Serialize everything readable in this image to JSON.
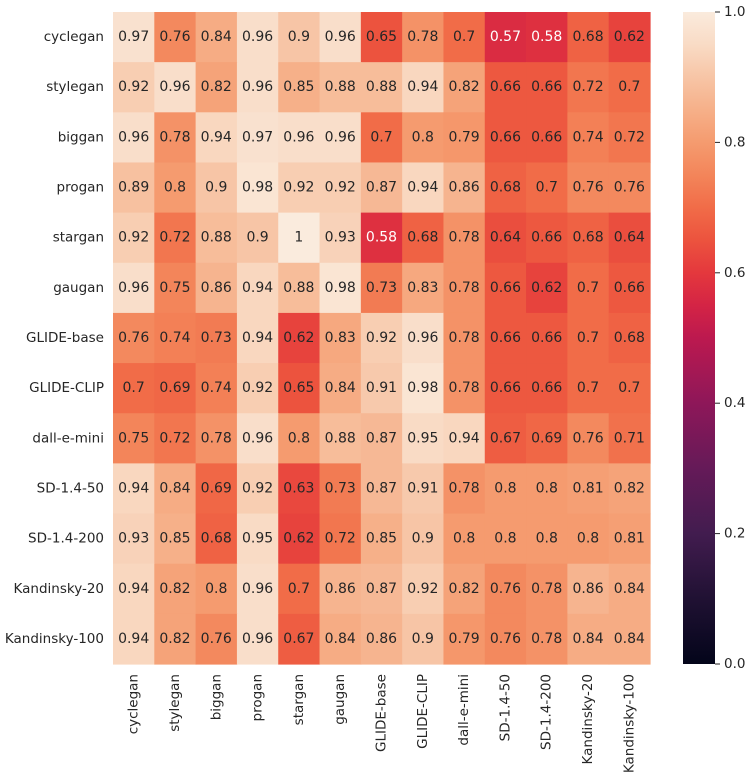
{
  "chart_data": {
    "type": "heatmap",
    "title": "",
    "xlabel": "",
    "ylabel": "",
    "rows": [
      "cyclegan",
      "stylegan",
      "biggan",
      "progan",
      "stargan",
      "gaugan",
      "GLIDE-base",
      "GLIDE-CLIP",
      "dall-e-mini",
      "SD-1.4-50",
      "SD-1.4-200",
      "Kandinsky-20",
      "Kandinsky-100"
    ],
    "columns": [
      "cyclegan",
      "stylegan",
      "biggan",
      "progan",
      "stargan",
      "gaugan",
      "GLIDE-base",
      "GLIDE-CLIP",
      "dall-e-mini",
      "SD-1.4-50",
      "SD-1.4-200",
      "Kandinsky-20",
      "Kandinsky-100"
    ],
    "values": [
      [
        0.97,
        0.76,
        0.84,
        0.96,
        0.9,
        0.96,
        0.65,
        0.78,
        0.7,
        0.57,
        0.58,
        0.68,
        0.62
      ],
      [
        0.92,
        0.96,
        0.82,
        0.96,
        0.85,
        0.88,
        0.88,
        0.94,
        0.82,
        0.66,
        0.66,
        0.72,
        0.7
      ],
      [
        0.96,
        0.78,
        0.94,
        0.97,
        0.96,
        0.96,
        0.7,
        0.8,
        0.79,
        0.66,
        0.66,
        0.74,
        0.72
      ],
      [
        0.89,
        0.8,
        0.9,
        0.98,
        0.92,
        0.92,
        0.87,
        0.94,
        0.86,
        0.68,
        0.7,
        0.76,
        0.76
      ],
      [
        0.92,
        0.72,
        0.88,
        0.9,
        1,
        0.93,
        0.58,
        0.68,
        0.78,
        0.64,
        0.66,
        0.68,
        0.64
      ],
      [
        0.96,
        0.75,
        0.86,
        0.94,
        0.88,
        0.98,
        0.73,
        0.83,
        0.78,
        0.66,
        0.62,
        0.7,
        0.66
      ],
      [
        0.76,
        0.74,
        0.73,
        0.94,
        0.62,
        0.83,
        0.92,
        0.96,
        0.78,
        0.66,
        0.66,
        0.7,
        0.68
      ],
      [
        0.7,
        0.69,
        0.74,
        0.92,
        0.65,
        0.84,
        0.91,
        0.98,
        0.78,
        0.66,
        0.66,
        0.7,
        0.7
      ],
      [
        0.75,
        0.72,
        0.78,
        0.96,
        0.8,
        0.88,
        0.87,
        0.95,
        0.94,
        0.67,
        0.69,
        0.76,
        0.71
      ],
      [
        0.94,
        0.84,
        0.69,
        0.92,
        0.63,
        0.73,
        0.87,
        0.91,
        0.78,
        0.8,
        0.8,
        0.81,
        0.82
      ],
      [
        0.93,
        0.85,
        0.68,
        0.95,
        0.62,
        0.72,
        0.85,
        0.9,
        0.8,
        0.8,
        0.8,
        0.8,
        0.81
      ],
      [
        0.94,
        0.82,
        0.8,
        0.96,
        0.7,
        0.86,
        0.87,
        0.92,
        0.82,
        0.76,
        0.78,
        0.86,
        0.84
      ],
      [
        0.94,
        0.82,
        0.76,
        0.96,
        0.67,
        0.84,
        0.86,
        0.9,
        0.79,
        0.76,
        0.78,
        0.84,
        0.84
      ]
    ],
    "colorbar": {
      "colormap": "rocket",
      "range": [
        0,
        1
      ],
      "ticks": [
        0.0,
        0.2,
        0.4,
        0.6,
        0.8,
        1.0
      ],
      "tick_labels": [
        "0.0",
        "0.2",
        "0.4",
        "0.6",
        "0.8",
        "1.0"
      ]
    }
  }
}
